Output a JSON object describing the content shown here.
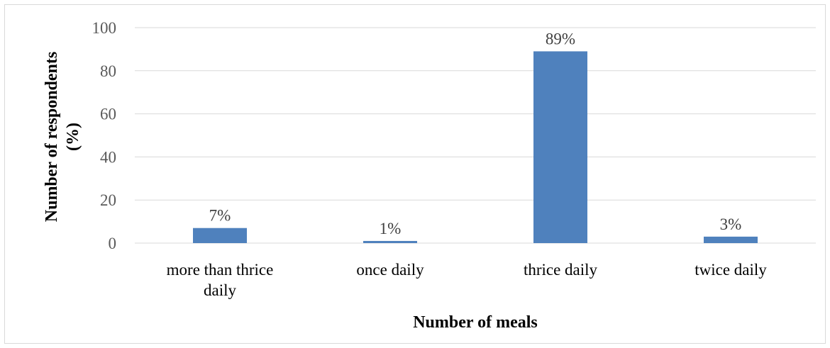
{
  "chart_data": {
    "type": "bar",
    "categories": [
      [
        "more than thrice",
        "daily"
      ],
      [
        "once daily"
      ],
      [
        "thrice daily"
      ],
      [
        "twice daily"
      ]
    ],
    "values": [
      7,
      1,
      89,
      3
    ],
    "data_labels": [
      "7%",
      "1%",
      "89%",
      "3%"
    ],
    "xlabel": "Number of meals",
    "ylabel": [
      "Number of respondents",
      "(%)"
    ],
    "ylim": [
      0,
      100
    ],
    "yticks": [
      0,
      20,
      40,
      60,
      80,
      100
    ],
    "grid": true,
    "bar_color": "#4f81bd"
  }
}
